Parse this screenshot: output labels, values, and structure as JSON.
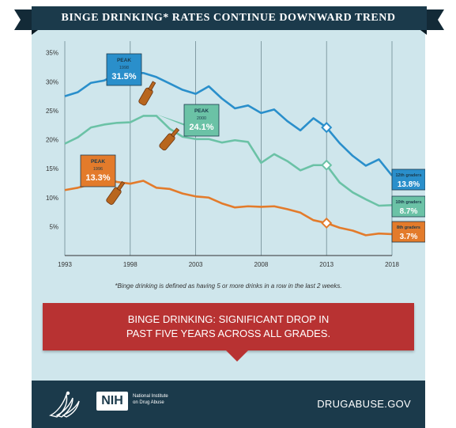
{
  "header": {
    "title": "BINGE DRINKING* RATES CONTINUE DOWNWARD TREND"
  },
  "footnote": "*Binge drinking is defined as having 5 or more drinks in a row in the last 2 weeks.",
  "callout": {
    "line1": "BINGE DRINKING: SIGNIFICANT DROP IN",
    "line2": "PAST FIVE YEARS ACROSS ALL GRADES."
  },
  "footer": {
    "nih_mark": "NIH",
    "nih_line1": "National Institute",
    "nih_line2": "on Drug Abuse",
    "url": "DRUGABUSE.GOV",
    "logo_icon": "hhs-eagle-icon"
  },
  "colors": {
    "grade12": "#2a8fcb",
    "grade10": "#6bc2a6",
    "grade8": "#e37b2b",
    "panel": "#cfe6ec",
    "banner": "#1b3a4b",
    "callout": "#b83232",
    "bottle_icon": "#b8661e"
  },
  "chart_data": {
    "type": "line",
    "title": "BINGE DRINKING* RATES CONTINUE DOWNWARD TREND",
    "xlim": [
      1993,
      2018
    ],
    "ylim": [
      0,
      37
    ],
    "x_ticks": [
      "1993",
      "1998",
      "2003",
      "2008",
      "2013",
      "2018"
    ],
    "x_tick_values": [
      1993,
      1998,
      2003,
      2008,
      2013,
      2018
    ],
    "y_ticks": [
      "35%",
      "30%",
      "25%",
      "20%",
      "15%",
      "10%",
      "5%"
    ],
    "y_tick_values": [
      35,
      30,
      25,
      20,
      15,
      10,
      5
    ],
    "grid": "vertical",
    "series": [
      {
        "name": "12th graders",
        "key": "grade12",
        "x": [
          1993,
          1994,
          1995,
          1996,
          1997,
          1998,
          1999,
          2000,
          2001,
          2002,
          2003,
          2004,
          2005,
          2006,
          2007,
          2008,
          2009,
          2010,
          2011,
          2012,
          2013,
          2014,
          2015,
          2016,
          2017,
          2018
        ],
        "values": [
          27.5,
          28.2,
          29.8,
          30.2,
          31.3,
          31.5,
          31.5,
          30.8,
          29.7,
          28.6,
          27.9,
          29.2,
          27.1,
          25.4,
          25.9,
          24.6,
          25.2,
          23.2,
          21.6,
          23.7,
          22.1,
          19.4,
          17.2,
          15.5,
          16.6,
          13.8
        ]
      },
      {
        "name": "10th graders",
        "key": "grade10",
        "x": [
          1993,
          1994,
          1995,
          1996,
          1997,
          1998,
          1999,
          2000,
          2001,
          2002,
          2003,
          2004,
          2005,
          2006,
          2007,
          2008,
          2009,
          2010,
          2011,
          2012,
          2013,
          2014,
          2015,
          2016,
          2017,
          2018
        ],
        "values": [
          19.3,
          20.4,
          22.1,
          22.6,
          22.9,
          23.0,
          24.1,
          24.1,
          21.9,
          20.5,
          20.1,
          20.1,
          19.5,
          19.9,
          19.6,
          16.0,
          17.5,
          16.3,
          14.7,
          15.6,
          15.6,
          12.6,
          10.9,
          9.7,
          8.6,
          8.7
        ]
      },
      {
        "name": "8th graders",
        "key": "grade8",
        "x": [
          1993,
          1994,
          1995,
          1996,
          1997,
          1998,
          1999,
          2000,
          2001,
          2002,
          2003,
          2004,
          2005,
          2006,
          2007,
          2008,
          2009,
          2010,
          2011,
          2012,
          2013,
          2014,
          2015,
          2016,
          2017,
          2018
        ],
        "values": [
          11.3,
          11.7,
          12.3,
          13.3,
          12.7,
          12.4,
          12.9,
          11.7,
          11.5,
          10.7,
          10.2,
          10.0,
          9.0,
          8.3,
          8.5,
          8.4,
          8.5,
          8.0,
          7.4,
          6.1,
          5.6,
          4.8,
          4.3,
          3.5,
          3.8,
          3.7
        ]
      }
    ],
    "peaks": [
      {
        "series": "grade12",
        "label": "PEAK",
        "year": "1998",
        "value": "31.5%"
      },
      {
        "series": "grade10",
        "label": "PEAK",
        "year": "2000",
        "value": "24.1%"
      },
      {
        "series": "grade8",
        "label": "PEAK",
        "year": "1996",
        "value": "13.3%"
      }
    ],
    "end_labels": [
      {
        "series": "grade12",
        "name": "12th graders",
        "value": "13.8%"
      },
      {
        "series": "grade10",
        "name": "10th graders",
        "value": "8.7%"
      },
      {
        "series": "grade8",
        "name": "8th graders",
        "value": "3.7%"
      }
    ],
    "markers_2013": [
      "grade12",
      "grade10",
      "grade8"
    ]
  }
}
